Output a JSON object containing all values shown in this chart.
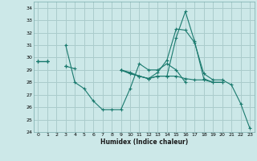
{
  "xlabel": "Humidex (Indice chaleur)",
  "bg_color": "#cce8e8",
  "grid_color": "#aacccc",
  "line_color": "#1a7a6e",
  "ylim": [
    24,
    34.5
  ],
  "xlim": [
    -0.5,
    23.5
  ],
  "yticks": [
    24,
    25,
    26,
    27,
    28,
    29,
    30,
    31,
    32,
    33,
    34
  ],
  "xticks": [
    0,
    1,
    2,
    3,
    4,
    5,
    6,
    7,
    8,
    9,
    10,
    11,
    12,
    13,
    14,
    15,
    16,
    17,
    18,
    19,
    20,
    21,
    22,
    23
  ],
  "series": [
    [
      29.7,
      29.7,
      null,
      31.0,
      28.0,
      27.5,
      26.5,
      25.8,
      25.8,
      25.8,
      27.5,
      29.5,
      29.0,
      29.0,
      29.5,
      29.0,
      28.0,
      null,
      null,
      null,
      null,
      null,
      null,
      null
    ],
    [
      29.7,
      29.7,
      null,
      29.3,
      29.1,
      null,
      null,
      null,
      null,
      29.0,
      28.7,
      28.5,
      28.3,
      28.8,
      29.8,
      32.3,
      32.2,
      31.2,
      28.7,
      28.2,
      28.2,
      27.8,
      26.3,
      24.3
    ],
    [
      29.7,
      29.7,
      null,
      29.3,
      null,
      null,
      null,
      null,
      null,
      29.0,
      28.8,
      28.5,
      28.3,
      28.5,
      28.5,
      31.6,
      33.7,
      31.3,
      28.3,
      28.0,
      28.0,
      null,
      null,
      null
    ],
    [
      29.7,
      29.7,
      null,
      29.3,
      null,
      null,
      null,
      null,
      null,
      29.0,
      28.7,
      28.5,
      28.3,
      28.5,
      28.5,
      28.5,
      28.3,
      28.2,
      28.2,
      28.0,
      28.0,
      null,
      null,
      null
    ]
  ]
}
